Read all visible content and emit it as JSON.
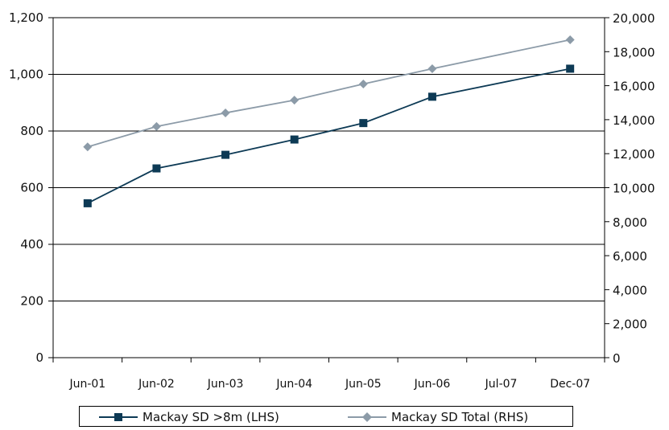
{
  "chart_data": {
    "type": "line",
    "title": "",
    "categories": [
      "Jun-01",
      "Jun-02",
      "Jun-03",
      "Jun-04",
      "Jun-05",
      "Jun-06",
      "Jul-07",
      "Dec-07"
    ],
    "y_left": {
      "min": 0,
      "max": 1200,
      "ticks": [
        "0",
        "200",
        "400",
        "600",
        "800",
        "1,000",
        "1,200"
      ]
    },
    "y_right": {
      "min": 0,
      "max": 20000,
      "ticks": [
        "0",
        "2,000",
        "4,000",
        "6,000",
        "8,000",
        "10,000",
        "12,000",
        "14,000",
        "16,000",
        "18,000",
        "20,000"
      ]
    },
    "grid": true,
    "legend_position": "bottom",
    "series": [
      {
        "name": "Mackay SD >8m (LHS)",
        "axis": "left",
        "color": "#0d3a55",
        "marker": "square",
        "points": [
          {
            "x": "Jun-01",
            "y": 545
          },
          {
            "x": "Jun-02",
            "y": 668
          },
          {
            "x": "Jun-03",
            "y": 716
          },
          {
            "x": "Jun-04",
            "y": 770
          },
          {
            "x": "Jun-05",
            "y": 828
          },
          {
            "x": "Jun-06",
            "y": 921
          },
          {
            "x": "Dec-07",
            "y": 1020
          }
        ]
      },
      {
        "name": "Mackay SD Total (RHS)",
        "axis": "right",
        "color": "#8c9ba8",
        "marker": "diamond",
        "points": [
          {
            "x": "Jun-01",
            "y": 12400
          },
          {
            "x": "Jun-02",
            "y": 13600
          },
          {
            "x": "Jun-03",
            "y": 14400
          },
          {
            "x": "Jun-04",
            "y": 15150
          },
          {
            "x": "Jun-05",
            "y": 16100
          },
          {
            "x": "Jun-06",
            "y": 17000
          },
          {
            "x": "Dec-07",
            "y": 18700
          }
        ]
      }
    ]
  }
}
